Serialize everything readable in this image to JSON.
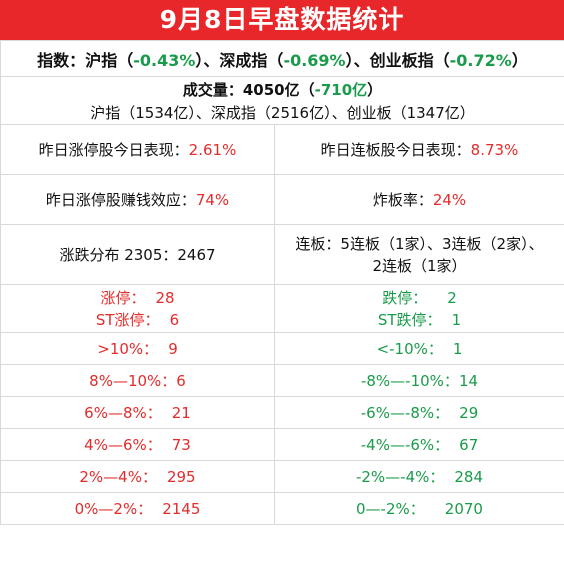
{
  "title": "9月8日早盘数据统计",
  "index": {
    "label": "指数：",
    "items": [
      {
        "name": "沪指",
        "value": "-0.43%"
      },
      {
        "name": "深成指",
        "value": "-0.69%"
      },
      {
        "name": "创业板指",
        "value": "-0.72%"
      }
    ],
    "separator": "、"
  },
  "volume": {
    "label": "成交量：4050亿",
    "change": "-710亿",
    "detail": "沪指（1534亿）、深成指（2516亿）、创业板（1347亿）"
  },
  "stats": {
    "zt_perf_label": "昨日涨停股今日表现：",
    "zt_perf_value": "2.61%",
    "lb_perf_label": "昨日连板股今日表现：",
    "lb_perf_value": "8.73%",
    "zt_money_label": "昨日涨停股赚钱效应：",
    "zt_money_value": "74%",
    "zb_rate_label": "炸板率：",
    "zb_rate_value": "24%",
    "distribution": "涨跌分布 2305：2467",
    "lianban_line1": "连板：5连板（1家）、3连板（2家）、",
    "lianban_line2": "2连板（1家）"
  },
  "limits": {
    "zt_label": "涨停：",
    "zt_value": "28",
    "st_zt_label": "ST涨停：",
    "st_zt_value": "6",
    "dt_label": "跌停：",
    "dt_value": "2",
    "st_dt_label": "ST跌停：",
    "st_dt_value": "1"
  },
  "ranges": [
    {
      "up_label": ">10%：",
      "up_value": "9",
      "down_label": "<-10%：",
      "down_value": "1"
    },
    {
      "up_label": "8%—10%：",
      "up_value": "6",
      "down_label": "-8%—-10%：",
      "down_value": "14"
    },
    {
      "up_label": "6%—8%：",
      "up_value": "21",
      "down_label": "-6%—-8%：",
      "down_value": "29"
    },
    {
      "up_label": "4%—6%：",
      "up_value": "73",
      "down_label": "-4%—-6%：",
      "down_value": "67"
    },
    {
      "up_label": "2%—4%：",
      "up_value": "295",
      "down_label": "-2%—-4%：",
      "down_value": "284"
    },
    {
      "up_label": "0%—2%：",
      "up_value": "2145",
      "down_label": "0—-2%：",
      "down_value": "2070"
    }
  ],
  "colors": {
    "title_bg": "#e8272b",
    "up": "#e52b2b",
    "down": "#1a9b4b"
  }
}
